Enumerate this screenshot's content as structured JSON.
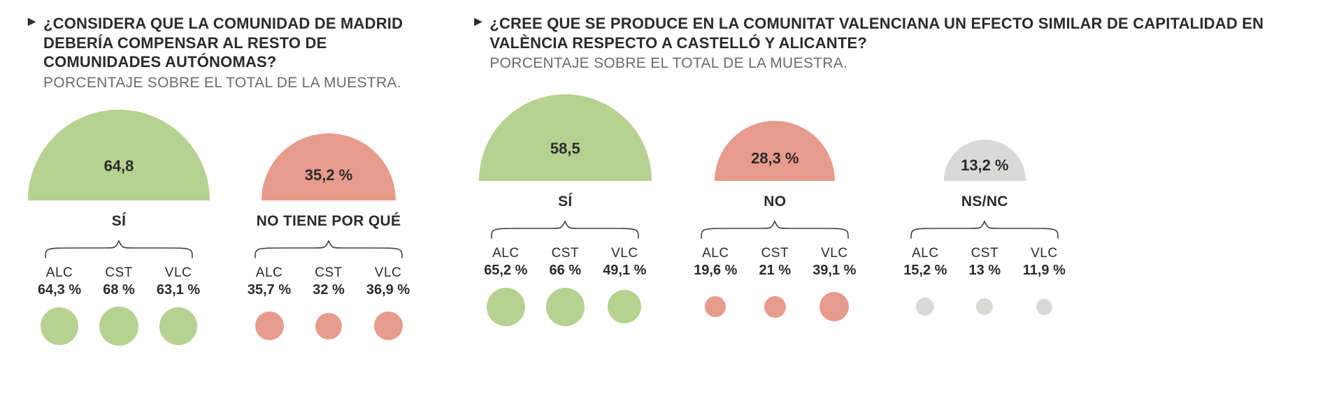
{
  "colors": {
    "green": "#b6d190",
    "red": "#e79b8c",
    "grey": "#d9dad8",
    "text": "#2b2b2b",
    "subtext": "#6b6b6b",
    "brace": "#404040",
    "bg": "#ffffff"
  },
  "panels": [
    {
      "question": "¿CONSIDERA QUE LA COMUNIDAD DE MADRID DEBERÍA COMPENSAR AL RESTO  DE COMUNIDADES AUTÓNOMAS?",
      "subtitle": "PORCENTAJE SOBRE EL TOTAL DE LA MUESTRA.",
      "segments": [
        {
          "value_label": "64,8",
          "value": 64.8,
          "label": "SÍ",
          "colorKey": "green",
          "cities": [
            {
              "code": "ALC",
              "label": "64,3 %",
              "value": 64.3
            },
            {
              "code": "CST",
              "label": "68 %",
              "value": 68.0
            },
            {
              "code": "VLC",
              "label": "63,1 %",
              "value": 63.1
            }
          ]
        },
        {
          "value_label": "35,2 %",
          "value": 35.2,
          "label": "NO TIENE POR QUÉ",
          "colorKey": "red",
          "cities": [
            {
              "code": "ALC",
              "label": "35,7 %",
              "value": 35.7
            },
            {
              "code": "CST",
              "label": "32 %",
              "value": 32.0
            },
            {
              "code": "VLC",
              "label": "36,9 %",
              "value": 36.9
            }
          ]
        }
      ]
    },
    {
      "question": "¿CREE QUE SE PRODUCE EN LA COMUNITAT VALENCIANA UN EFECTO SIMILAR DE CAPITALIDAD EN VALÈNCIA RESPECTO A CASTELLÓ Y ALICANTE?",
      "subtitle": "PORCENTAJE SOBRE EL TOTAL DE LA MUESTRA.",
      "segments": [
        {
          "value_label": "58,5",
          "value": 58.5,
          "label": "SÍ",
          "colorKey": "green",
          "cities": [
            {
              "code": "ALC",
              "label": "65,2 %",
              "value": 65.2
            },
            {
              "code": "CST",
              "label": "66 %",
              "value": 66.0
            },
            {
              "code": "VLC",
              "label": "49,1 %",
              "value": 49.1
            }
          ]
        },
        {
          "value_label": "28,3 %",
          "value": 28.3,
          "label": "NO",
          "colorKey": "red",
          "cities": [
            {
              "code": "ALC",
              "label": "19,6 %",
              "value": 19.6
            },
            {
              "code": "CST",
              "label": "21 %",
              "value": 21.0
            },
            {
              "code": "VLC",
              "label": "39,1 %",
              "value": 39.1
            }
          ]
        },
        {
          "value_label": "13,2 %",
          "value": 13.2,
          "label": "NS/NC",
          "colorKey": "grey",
          "cities": [
            {
              "code": "ALC",
              "label": "15,2 %",
              "value": 15.2
            },
            {
              "code": "CST",
              "label": "13 %",
              "value": 13.0
            },
            {
              "code": "VLC",
              "label": "11,9 %",
              "value": 11.9
            }
          ]
        }
      ]
    }
  ],
  "dome": {
    "maxWidth": 260,
    "maxHeight": 130,
    "refValue": 64.8
  },
  "bubble": {
    "maxDiameter": 56,
    "refValue": 68.0
  }
}
